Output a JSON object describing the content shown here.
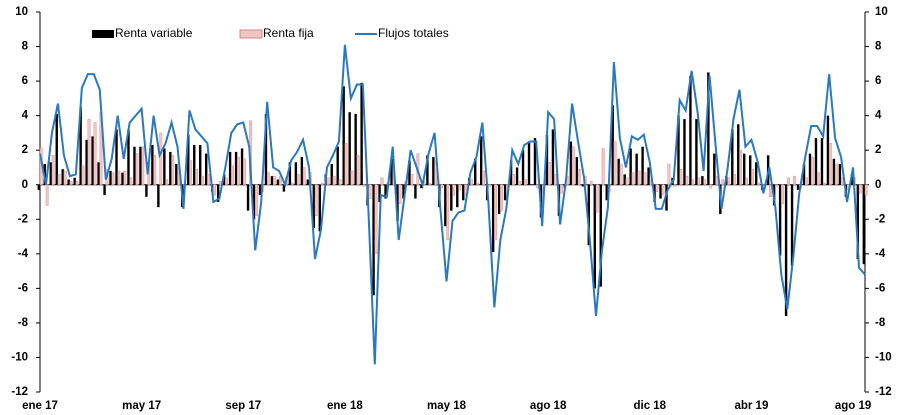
{
  "chart_data": {
    "type": "bar-line",
    "categories": [
      "ene 17",
      null,
      null,
      null,
      null,
      null,
      null,
      null,
      null,
      null,
      null,
      null,
      null,
      null,
      null,
      null,
      null,
      "may 17",
      null,
      null,
      null,
      null,
      null,
      null,
      null,
      null,
      null,
      null,
      null,
      null,
      null,
      null,
      null,
      null,
      "sep 17",
      null,
      null,
      null,
      null,
      null,
      null,
      null,
      null,
      null,
      null,
      null,
      null,
      null,
      null,
      null,
      null,
      "ene 18",
      null,
      null,
      null,
      null,
      null,
      null,
      null,
      null,
      null,
      null,
      null,
      null,
      null,
      null,
      null,
      null,
      "may 18",
      null,
      null,
      null,
      null,
      null,
      null,
      null,
      null,
      null,
      null,
      null,
      null,
      null,
      null,
      null,
      null,
      "ago 18",
      null,
      null,
      null,
      null,
      null,
      null,
      null,
      null,
      null,
      null,
      null,
      null,
      null,
      null,
      null,
      null,
      "dic 18",
      null,
      null,
      null,
      null,
      null,
      null,
      null,
      null,
      null,
      null,
      null,
      null,
      null,
      null,
      null,
      null,
      "abr 19",
      null,
      null,
      null,
      null,
      null,
      null,
      null,
      null,
      null,
      null,
      null,
      null,
      null,
      null,
      null,
      null,
      "ago 19",
      null,
      null
    ],
    "series": [
      {
        "name": "Renta variable",
        "color": "#000000",
        "kind": "bar",
        "values": [
          -0.3,
          1.2,
          1.3,
          4.1,
          0.9,
          0.3,
          0.4,
          4.5,
          2.6,
          2.8,
          1.3,
          -0.6,
          0.8,
          3.2,
          0.7,
          3.2,
          2.2,
          2.2,
          -0.7,
          2.3,
          -1.3,
          2.1,
          1.9,
          1.2,
          -1.3,
          2.9,
          2.3,
          2.3,
          1.8,
          -0.4,
          -1.0,
          0.6,
          1.9,
          1.9,
          2.1,
          -1.5,
          -2.0,
          -0.6,
          4.1,
          0.5,
          0.3,
          -0.4,
          1.3,
          1.3,
          1.6,
          0.3,
          -2.5,
          -2.7,
          0.6,
          1.2,
          2.2,
          5.7,
          4.2,
          4.1,
          5.9,
          -1.2,
          -6.4,
          -1.0,
          -0.8,
          1.5,
          -2.1,
          -0.8,
          1.4,
          -0.8,
          -0.2,
          1.7,
          1.6,
          -1.3,
          -2.4,
          -1.5,
          -1.3,
          -0.9,
          0.4,
          1.5,
          2.8,
          -0.9,
          -3.9,
          -1.7,
          -0.9,
          1.4,
          1.0,
          2.0,
          2.5,
          2.7,
          -1.9,
          2.9,
          3.2,
          -1.8,
          -0.2,
          2.5,
          1.6,
          -0.1,
          -3.5,
          -6.0,
          -5.9,
          -0.9,
          4.6,
          1.5,
          0.6,
          2.1,
          1.8,
          2.2,
          1.0,
          -1.0,
          -0.8,
          -1.5,
          0.4,
          4.0,
          3.8,
          6.3,
          3.8,
          0.5,
          6.5,
          1.8,
          -1.7,
          0.5,
          3.2,
          3.5,
          1.8,
          1.7,
          1.3,
          -0.3,
          1.7,
          -1.2,
          -4.1,
          -7.6,
          -4.7,
          -0.3,
          1.2,
          1.8,
          2.7,
          2.7,
          4.0,
          1.5,
          1.2,
          -0.7,
          0.6,
          -4.3,
          -4.6
        ]
      },
      {
        "name": "Renta fija",
        "color": "#f2c4c4",
        "kind": "bar",
        "values": [
          2.1,
          -1.2,
          1.7,
          0.6,
          0.8,
          0.2,
          0.2,
          1.1,
          3.8,
          3.6,
          4.2,
          0.9,
          0.7,
          0.8,
          0.8,
          0.4,
          1.8,
          2.2,
          1.3,
          1.7,
          3.0,
          0.3,
          1.7,
          1.0,
          -0.1,
          1.4,
          0.9,
          0.5,
          0.6,
          -0.6,
          0.2,
          0.4,
          1.1,
          1.6,
          1.5,
          3.7,
          -1.8,
          -0.4,
          0.7,
          0.5,
          0.5,
          0.4,
          0.1,
          0.6,
          1.0,
          0.7,
          -1.8,
          0.1,
          0.4,
          0.5,
          0.3,
          2.4,
          0.8,
          1.7,
          -0.1,
          -0.8,
          -4.0,
          0.4,
          0.1,
          0.7,
          -1.1,
          0.2,
          0.6,
          1.8,
          0.2,
          0.1,
          1.4,
          -0.2,
          -3.2,
          -0.6,
          -0.3,
          -0.6,
          0.3,
          0.1,
          0.8,
          -0.1,
          -3.2,
          -1.5,
          -0.5,
          0.6,
          0.2,
          0.3,
          0.0,
          -0.2,
          -0.5,
          1.3,
          0.6,
          -0.5,
          0.5,
          2.2,
          0.9,
          0.5,
          0.2,
          -1.6,
          2.1,
          -0.4,
          2.5,
          1.2,
          0.4,
          0.7,
          0.8,
          0.7,
          0.3,
          -0.4,
          -0.6,
          1.2,
          -0.1,
          0.9,
          0.5,
          0.3,
          0.4,
          0.3,
          -0.2,
          0.5,
          0.3,
          0.4,
          0.6,
          2.0,
          0.4,
          0.9,
          0.1,
          -0.2,
          -0.7,
          -0.1,
          -1.1,
          0.4,
          0.5,
          -0.2,
          0.4,
          1.6,
          0.7,
          0.1,
          2.4,
          1.2,
          0.4,
          -0.3,
          0.4,
          -0.5,
          -0.6
        ]
      },
      {
        "name": "Flujos totales",
        "color": "#2a78c2",
        "kind": "line",
        "values": [
          1.8,
          0,
          3,
          4.7,
          1.7,
          0.5,
          0.6,
          5.6,
          6.4,
          6.4,
          5.5,
          0.3,
          1.5,
          4,
          1.5,
          3.6,
          4,
          4.4,
          0.6,
          4,
          1.7,
          2.4,
          3.6,
          2.2,
          -1.4,
          4.3,
          3.2,
          2.8,
          2.4,
          -1,
          -0.8,
          1,
          3,
          3.5,
          3.6,
          2.2,
          -3.8,
          -1,
          4.8,
          1,
          0.8,
          0,
          1.4,
          1.9,
          2.6,
          1,
          -4.3,
          -2.6,
          1,
          1.7,
          2.5,
          8.1,
          5,
          5.8,
          5.8,
          -2,
          -10.4,
          -0.6,
          -0.7,
          2.2,
          -3.2,
          -0.6,
          2,
          1,
          0,
          1.8,
          3,
          -1.5,
          -5.6,
          -2.1,
          -1.6,
          -1.5,
          0.7,
          1.6,
          3.6,
          -1,
          -7.1,
          -3.2,
          -1.4,
          2,
          1.2,
          2.3,
          2.5,
          2.5,
          -2.4,
          4.2,
          3.8,
          -2.3,
          0.3,
          4.7,
          2.5,
          0.4,
          -3.3,
          -7.6,
          -3.8,
          -1.3,
          7.1,
          2.7,
          1,
          2.8,
          2.6,
          2.9,
          1.3,
          -1.4,
          -1.4,
          -0.3,
          0.3,
          4.9,
          4.3,
          6.6,
          4.2,
          0.8,
          6.3,
          2.3,
          -1.4,
          0.9,
          3.8,
          5.5,
          2.2,
          2.6,
          1.4,
          -0.5,
          1,
          -1.3,
          -5.2,
          -7.2,
          -4.2,
          -0.5,
          1.6,
          3.4,
          3.4,
          2.8,
          6.4,
          2.7,
          1.6,
          -1,
          1,
          -4.8,
          -5.2
        ]
      }
    ],
    "ylim": [
      -12,
      10
    ],
    "yticks": [
      -12,
      -10,
      -8,
      -6,
      -4,
      -2,
      0,
      2,
      4,
      6,
      8,
      10
    ],
    "y2lim": [
      -12,
      10
    ],
    "y2ticks": [
      -12,
      -10,
      -8,
      -6,
      -4,
      -2,
      0,
      2,
      4,
      6,
      8,
      10
    ],
    "grid": false,
    "legend": "top"
  }
}
